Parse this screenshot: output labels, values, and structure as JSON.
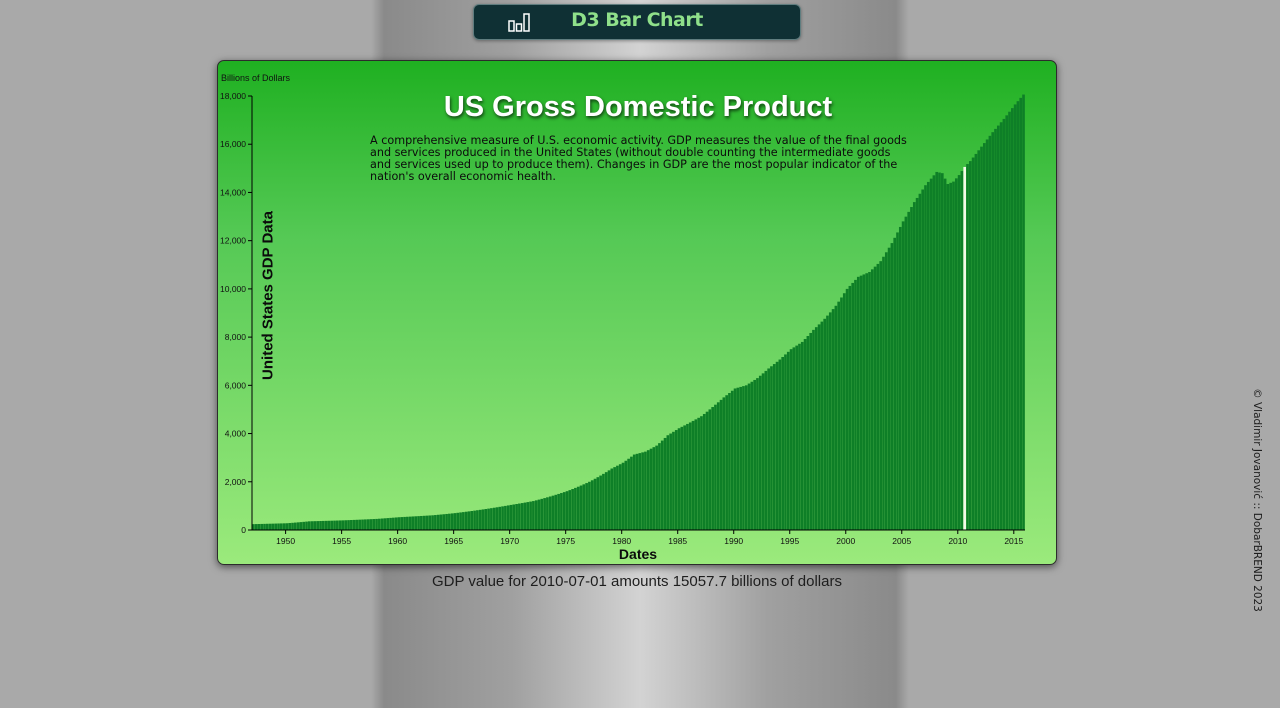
{
  "header": {
    "app_title": "D3 Bar Chart",
    "logo_icon": "bar-chart-icon"
  },
  "chart": {
    "unit_label": "Billions of Dollars",
    "title": "US Gross Domestic Product",
    "description": "A comprehensive measure of U.S. economic activity. GDP measures the value of the final goods and services produced in the United States (without double counting the intermediate goods and services used up to produce them). Changes in GDP are the most popular indicator of the nation's overall economic health.",
    "ylabel": "United States GDP Data",
    "xlabel": "Dates"
  },
  "tooltip": {
    "text": "GDP value for 2010-07-01 amounts 15057.7 billions of dollars"
  },
  "footer": {
    "copyright": "© Vladimir Jovanović :: DobarBREND 2023"
  },
  "colors": {
    "bar": "#0e7f27",
    "bar_highlight": "#f4fbe8",
    "header_bg": "#0f3034",
    "header_text": "#8fe08a"
  },
  "chart_data": {
    "type": "bar",
    "title": "US Gross Domestic Product",
    "xlabel": "Dates",
    "ylabel": "United States GDP Data",
    "unit": "Billions of Dollars",
    "x_range": [
      1947.0,
      2015.75
    ],
    "ylim": [
      0,
      18000
    ],
    "y_ticks": [
      0,
      2000,
      4000,
      6000,
      8000,
      10000,
      12000,
      14000,
      16000,
      18000
    ],
    "y_tick_labels": [
      "0",
      "2,000",
      "4,000",
      "6,000",
      "8,000",
      "10,000",
      "12,000",
      "14,000",
      "16,000",
      "18,000"
    ],
    "x_ticks": [
      1950,
      1955,
      1960,
      1965,
      1970,
      1975,
      1980,
      1985,
      1990,
      1995,
      2000,
      2005,
      2010,
      2015
    ],
    "x_tick_labels": [
      "1950",
      "1955",
      "1960",
      "1965",
      "1970",
      "1975",
      "1980",
      "1985",
      "1990",
      "1995",
      "2000",
      "2005",
      "2010",
      "2015"
    ],
    "frequency": "quarterly",
    "highlighted": {
      "date": "2010-07-01",
      "value": 15057.7
    },
    "anchors": [
      [
        1947.0,
        243
      ],
      [
        1950.0,
        280
      ],
      [
        1952.0,
        360
      ],
      [
        1955.0,
        400
      ],
      [
        1958.0,
        460
      ],
      [
        1960.0,
        530
      ],
      [
        1963.0,
        610
      ],
      [
        1965.0,
        700
      ],
      [
        1967.0,
        820
      ],
      [
        1970.0,
        1040
      ],
      [
        1972.0,
        1200
      ],
      [
        1975.0,
        1610
      ],
      [
        1977.0,
        2000
      ],
      [
        1979.0,
        2550
      ],
      [
        1980.0,
        2790
      ],
      [
        1981.0,
        3130
      ],
      [
        1982.0,
        3250
      ],
      [
        1983.0,
        3500
      ],
      [
        1984.0,
        3930
      ],
      [
        1985.0,
        4220
      ],
      [
        1986.0,
        4460
      ],
      [
        1987.0,
        4720
      ],
      [
        1988.0,
        5100
      ],
      [
        1989.0,
        5500
      ],
      [
        1990.0,
        5870
      ],
      [
        1991.0,
        6000
      ],
      [
        1992.0,
        6300
      ],
      [
        1993.0,
        6700
      ],
      [
        1994.0,
        7070
      ],
      [
        1995.0,
        7500
      ],
      [
        1996.0,
        7800
      ],
      [
        1997.0,
        8300
      ],
      [
        1998.0,
        8760
      ],
      [
        1999.0,
        9300
      ],
      [
        2000.0,
        10000
      ],
      [
        2001.0,
        10500
      ],
      [
        2002.0,
        10700
      ],
      [
        2003.0,
        11150
      ],
      [
        2004.0,
        11900
      ],
      [
        2005.0,
        12800
      ],
      [
        2006.0,
        13600
      ],
      [
        2007.0,
        14300
      ],
      [
        2008.0,
        14850
      ],
      [
        2008.5,
        14800
      ],
      [
        2009.0,
        14350
      ],
      [
        2009.5,
        14450
      ],
      [
        2010.0,
        14720
      ],
      [
        2010.5,
        15057.7
      ],
      [
        2011.0,
        15300
      ],
      [
        2012.0,
        15900
      ],
      [
        2013.0,
        16500
      ],
      [
        2014.0,
        17050
      ],
      [
        2015.0,
        17650
      ],
      [
        2015.75,
        18060
      ]
    ]
  }
}
